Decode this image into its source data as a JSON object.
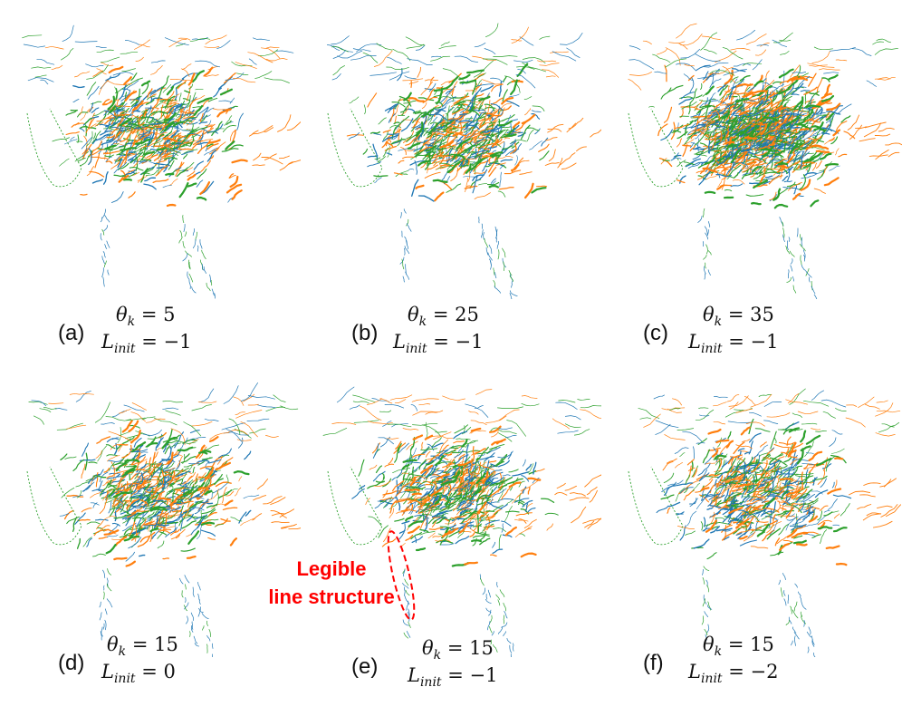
{
  "colors": {
    "blue": "#1f77b4",
    "orange": "#ff7f0e",
    "green": "#2ca02c",
    "annotation": "#ff0000"
  },
  "panels": [
    {
      "id": "a",
      "label": "(a)",
      "theta_sym": "θ",
      "theta_sub": "k",
      "theta_val": "5",
      "l_sym": "L",
      "l_sub": "init",
      "l_val": "−1"
    },
    {
      "id": "b",
      "label": "(b)",
      "theta_sym": "θ",
      "theta_sub": "k",
      "theta_val": "25",
      "l_sym": "L",
      "l_sub": "init",
      "l_val": "−1"
    },
    {
      "id": "c",
      "label": "(c)",
      "theta_sym": "θ",
      "theta_sub": "k",
      "theta_val": "35",
      "l_sym": "L",
      "l_sub": "init",
      "l_val": "−1"
    },
    {
      "id": "d",
      "label": "(d)",
      "theta_sym": "θ",
      "theta_sub": "k",
      "theta_val": "15",
      "l_sym": "L",
      "l_sub": "init",
      "l_val": "0"
    },
    {
      "id": "e",
      "label": "(e)",
      "theta_sym": "θ",
      "theta_sub": "k",
      "theta_val": "15",
      "l_sym": "L",
      "l_sub": "init",
      "l_val": "−1"
    },
    {
      "id": "f",
      "label": "(f)",
      "theta_sym": "θ",
      "theta_sub": "k",
      "theta_val": "15",
      "l_sym": "L",
      "l_sub": "init",
      "l_val": "−2"
    }
  ],
  "annotation": {
    "line1": "Legible",
    "line2": "line structure"
  }
}
